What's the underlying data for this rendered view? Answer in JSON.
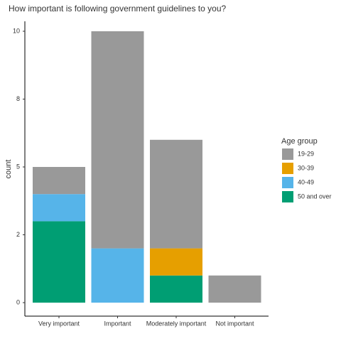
{
  "chart_data": {
    "type": "stacked_bar",
    "title": "How important is following government guidelines to you?",
    "y_label": "count",
    "categories": [
      "Very important",
      "Important",
      "Moderately important",
      "Not important"
    ],
    "series": [
      {
        "name": "19-29",
        "color": "#999999",
        "values": [
          1,
          8,
          4,
          1
        ]
      },
      {
        "name": "30-39",
        "color": "#E69F00",
        "values": [
          0,
          0,
          1,
          0
        ]
      },
      {
        "name": "40-49",
        "color": "#56B4E9",
        "values": [
          1,
          2,
          0,
          0
        ]
      },
      {
        "name": "50 and over",
        "color": "#009E73",
        "values": [
          3,
          0,
          1,
          0
        ]
      }
    ],
    "stack_order_bottom_up": [
      "50 and over",
      "40-49",
      "30-39",
      "19-29"
    ],
    "legend_title": "Age group",
    "legend_position": "right",
    "ylim": [
      0,
      10
    ],
    "yticks": [
      0,
      {
        "value": 2.5,
        "label": "2"
      },
      5,
      {
        "value": 7.5,
        "label": "8"
      },
      10
    ],
    "grid": false
  }
}
